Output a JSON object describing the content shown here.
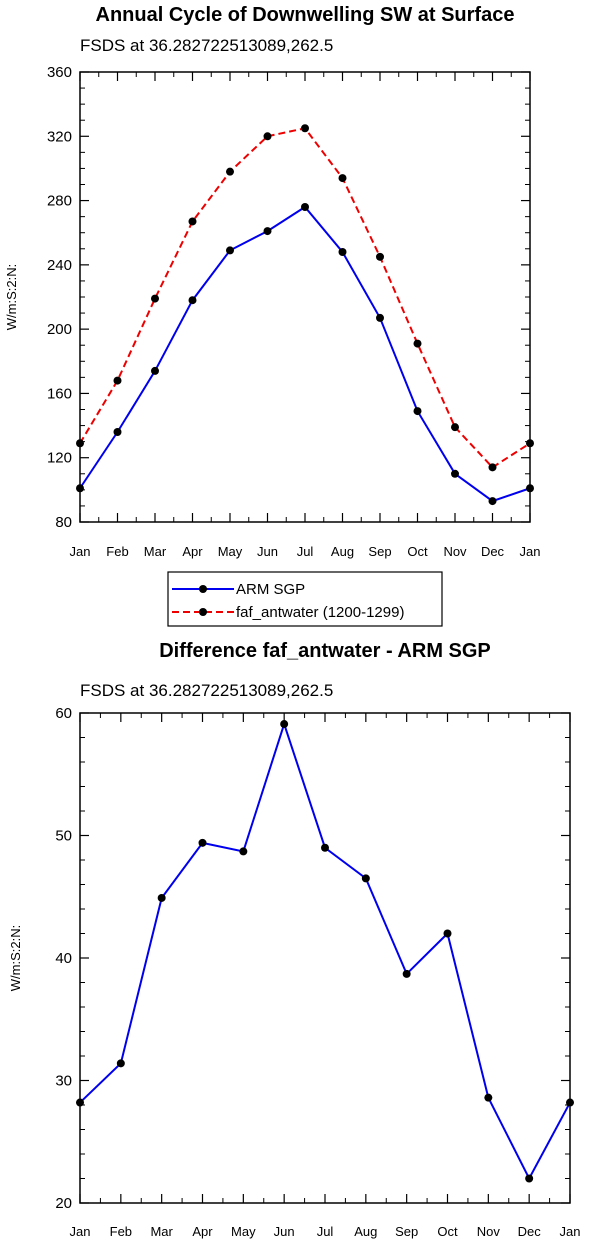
{
  "chart_data": [
    {
      "type": "line",
      "title": "Annual Cycle of Downwelling SW at Surface",
      "subtitle": "FSDS at 36.282722513089,262.5",
      "ylabel": "W/m:S:2:N:",
      "categories": [
        "Jan",
        "Feb",
        "Mar",
        "Apr",
        "May",
        "Jun",
        "Jul",
        "Aug",
        "Sep",
        "Oct",
        "Nov",
        "Dec",
        "Jan"
      ],
      "ylim": [
        80,
        360
      ],
      "yticks": [
        80,
        120,
        160,
        200,
        240,
        280,
        320,
        360
      ],
      "series": [
        {
          "name": "ARM SGP",
          "color": "#0000ee",
          "dash": "solid",
          "values": [
            101,
            136,
            174,
            218,
            249,
            261,
            276,
            248,
            207,
            149,
            110,
            93,
            101
          ]
        },
        {
          "name": "faf_antwater (1200-1299)",
          "color": "#ee0000",
          "dash": "dashed",
          "values": [
            129,
            168,
            219,
            267,
            298,
            320,
            325,
            294,
            245,
            191,
            139,
            114,
            129
          ]
        }
      ],
      "legend": "below"
    },
    {
      "type": "line",
      "title": "Difference faf_antwater - ARM SGP",
      "subtitle": "FSDS at 36.282722513089,262.5",
      "ylabel": "W/m:S:2:N:",
      "categories": [
        "Jan",
        "Feb",
        "Mar",
        "Apr",
        "May",
        "Jun",
        "Jul",
        "Aug",
        "Sep",
        "Oct",
        "Nov",
        "Dec",
        "Jan"
      ],
      "ylim": [
        20,
        60
      ],
      "yticks": [
        20,
        30,
        40,
        50,
        60
      ],
      "series": [
        {
          "color": "#0000ee",
          "dash": "solid",
          "values": [
            28.2,
            31.4,
            44.9,
            49.4,
            48.7,
            59.1,
            49.0,
            46.5,
            38.7,
            42.0,
            28.6,
            22.0,
            28.2
          ]
        }
      ]
    }
  ]
}
